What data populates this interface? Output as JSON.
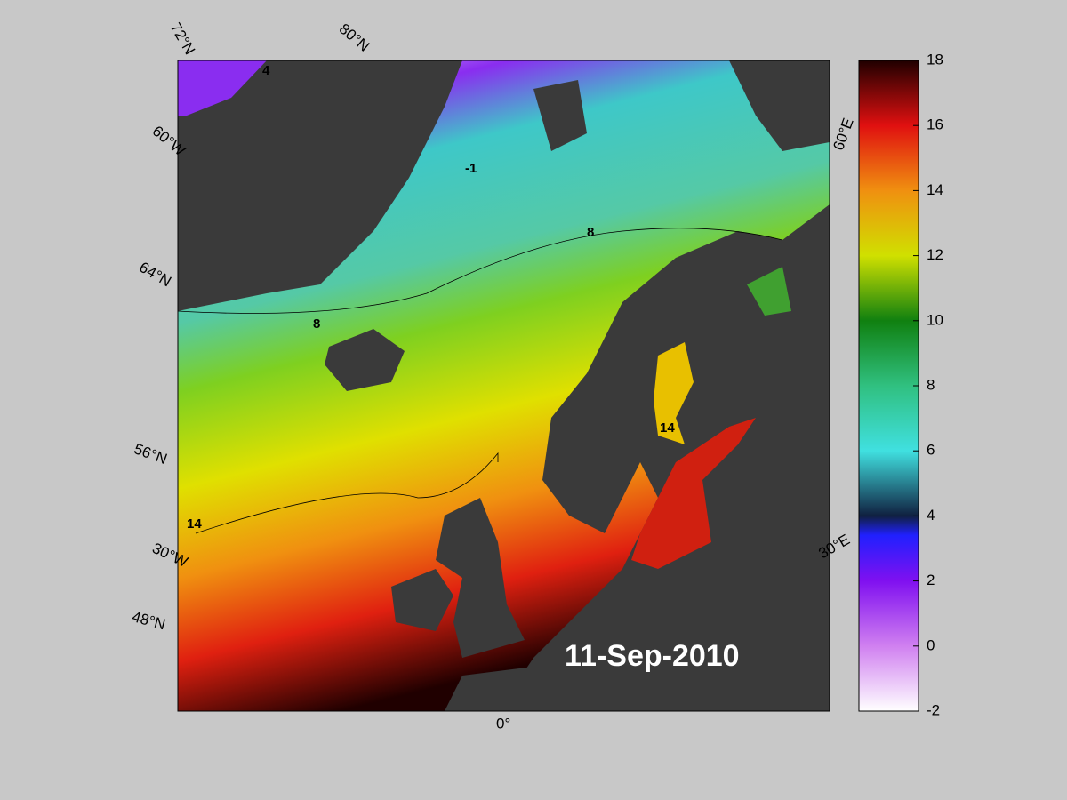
{
  "map": {
    "date": "11-Sep-2010",
    "lat_labels": [
      "72°N",
      "80°N",
      "64°N",
      "56°N",
      "48°N"
    ],
    "lon_labels": [
      "60°W",
      "30°W",
      "0°",
      "30°E",
      "60°E"
    ],
    "contour_labels": [
      -1,
      4,
      8,
      14
    ],
    "colorbar": {
      "range": [
        -2,
        18
      ],
      "ticks": [
        -2,
        0,
        2,
        4,
        6,
        8,
        10,
        12,
        14,
        16,
        18
      ]
    }
  }
}
